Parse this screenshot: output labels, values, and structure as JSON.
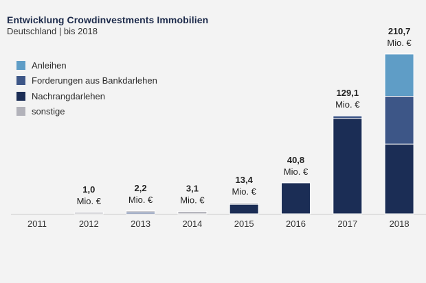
{
  "header": {
    "title": "Entwicklung Crowdinvestments Immobilien",
    "subtitle": "Deutschland | bis 2018"
  },
  "legend": [
    {
      "label": "Anleihen",
      "color": "#5f9dc6"
    },
    {
      "label": "Forderungen aus Bankdarlehen",
      "color": "#3d5687"
    },
    {
      "label": "Nachrangdarlehen",
      "color": "#1b2d55"
    },
    {
      "label": "sonstige",
      "color": "#b2b2ba"
    }
  ],
  "chart_data": {
    "type": "bar",
    "stacked": true,
    "title": "Entwicklung Crowdinvestments Immobilien",
    "subtitle": "Deutschland | bis 2018",
    "categories": [
      "2011",
      "2012",
      "2013",
      "2014",
      "2015",
      "2016",
      "2017",
      "2018"
    ],
    "unit": "Mio. €",
    "totals": [
      "",
      "1,0",
      "2,2",
      "3,1",
      "13,4",
      "40,8",
      "129,1",
      "210,7"
    ],
    "series": [
      {
        "name": "Nachrangdarlehen",
        "color": "#1b2d55",
        "values": [
          0,
          0,
          0,
          0,
          12.6,
          40.8,
          126.0,
          92.0
        ]
      },
      {
        "name": "Forderungen aus Bankdarlehen",
        "color": "#3d5687",
        "values": [
          0,
          0,
          2.0,
          0,
          0,
          0,
          3.1,
          63.0
        ]
      },
      {
        "name": "Anleihen",
        "color": "#5f9dc6",
        "values": [
          0,
          0,
          0,
          0,
          0,
          0,
          0,
          55.7
        ]
      },
      {
        "name": "sonstige",
        "color": "#b2b2ba",
        "values": [
          0,
          1.0,
          0.2,
          3.1,
          0.8,
          0,
          0,
          0
        ]
      }
    ],
    "ylim": [
      0,
      235
    ],
    "grid": false,
    "legend_position": "top-left"
  }
}
